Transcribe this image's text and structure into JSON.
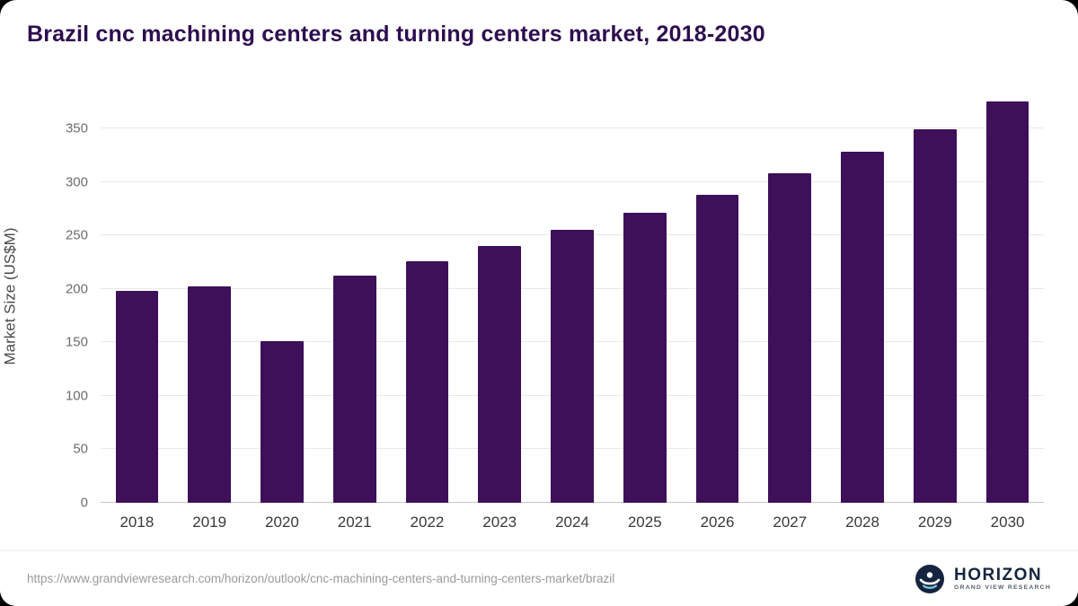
{
  "page": {
    "title": "Brazil cnc machining centers and turning centers market, 2018-2030"
  },
  "chart_data": {
    "type": "bar",
    "title": "Brazil cnc machining centers and turning centers market, 2018-2030",
    "categories": [
      "2018",
      "2019",
      "2020",
      "2021",
      "2022",
      "2023",
      "2024",
      "2025",
      "2026",
      "2027",
      "2028",
      "2029",
      "2030"
    ],
    "values": [
      198,
      202,
      151,
      212,
      226,
      240,
      255,
      271,
      288,
      308,
      328,
      349,
      375
    ],
    "xlabel": "",
    "ylabel": "Market Size (US$M)",
    "ylim": [
      0,
      386
    ],
    "yticks": [
      0,
      50,
      100,
      150,
      200,
      250,
      300,
      350
    ],
    "grid": true,
    "legend_position": "none",
    "bar_color": "#3d1059"
  },
  "footer": {
    "source_url": "https://www.grandviewresearch.com/horizon/outlook/cnc-machining-centers-and-turning-centers-market/brazil",
    "logo_name": "HORIZON",
    "logo_subtitle": "GRAND VIEW RESEARCH",
    "logo_color": "#15253f"
  }
}
